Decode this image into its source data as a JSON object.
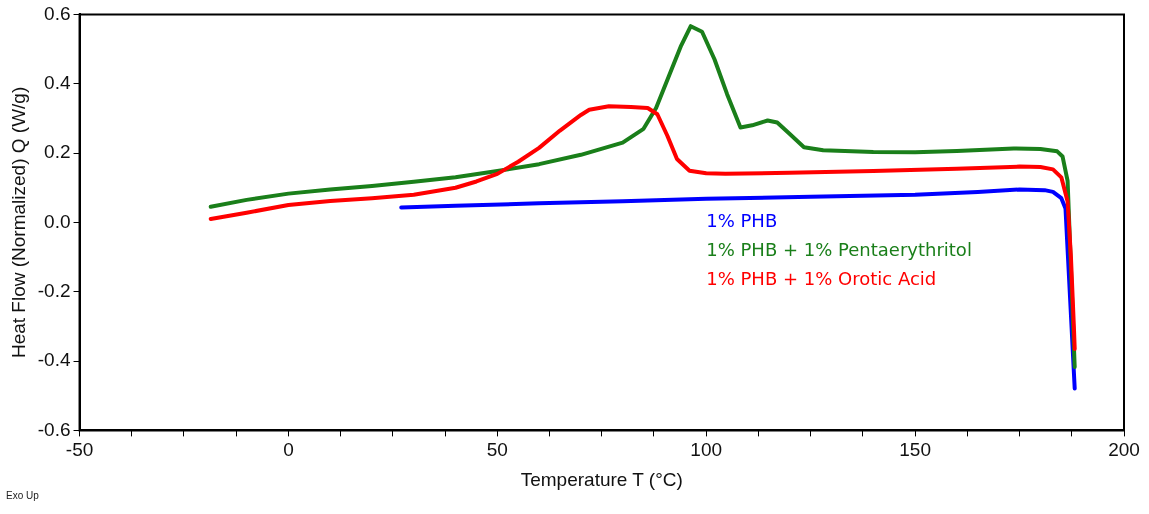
{
  "chart_data": {
    "type": "line",
    "xlabel": "Temperature T (°C)",
    "ylabel": "Heat Flow (Normalized) Q (W/g)",
    "xlim": [
      -50,
      200
    ],
    "xticks": [
      -50,
      {
        "value": -37.5,
        "label": null
      },
      {
        "value": -25,
        "label": null
      },
      {
        "value": -12.5,
        "label": null
      },
      0,
      {
        "value": 12.5,
        "label": null
      },
      {
        "value": 25,
        "label": null
      },
      {
        "value": 37.5,
        "label": null
      },
      50,
      {
        "value": 62.5,
        "label": null
      },
      {
        "value": 75,
        "label": null
      },
      {
        "value": 87.5,
        "label": null
      },
      100,
      {
        "value": 112.5,
        "label": null
      },
      {
        "value": 125,
        "label": null
      },
      {
        "value": 137.5,
        "label": null
      },
      150,
      {
        "value": 162.5,
        "label": null
      },
      {
        "value": 175,
        "label": null
      },
      {
        "value": 187.5,
        "label": null
      },
      200
    ],
    "ylim": [
      -0.6,
      0.6
    ],
    "yticks": [
      {
        "value": -0.6,
        "label": "-0.6"
      },
      {
        "value": -0.4,
        "label": "-0.4"
      },
      {
        "value": -0.2,
        "label": "-0.2"
      },
      {
        "value": 0,
        "label": "0.0"
      },
      {
        "value": 0.2,
        "label": "0.2"
      },
      {
        "value": 0.4,
        "label": "0.4"
      },
      {
        "value": 0.6,
        "label": "0.6"
      }
    ],
    "grid": false,
    "legend": "right",
    "marker": "none",
    "line_style": "solid",
    "annotations": [
      "Exo Up"
    ],
    "series": [
      {
        "name": "1% PHB",
        "color": "#0000ff",
        "x": [
          27,
          40,
          60,
          80,
          100,
          125,
          150,
          165,
          175,
          181,
          183,
          185,
          186,
          188.2
        ],
        "values": [
          0.043,
          0.048,
          0.055,
          0.061,
          0.068,
          0.074,
          0.08,
          0.088,
          0.095,
          0.093,
          0.088,
          0.07,
          0.04,
          -0.479
        ]
      },
      {
        "name": "1% PHB + 1% Pentaerythritol",
        "color": "#1a7f1a",
        "x": [
          -18.6,
          -10,
          0,
          10,
          20,
          30,
          40,
          50,
          60,
          70,
          80,
          85,
          88,
          91,
          94,
          96.3,
          99,
          102,
          105,
          108.2,
          111,
          114.7,
          117,
          120,
          123.4,
          128,
          140,
          150,
          160,
          173.6,
          180,
          184,
          185.3,
          186.5,
          188.2
        ],
        "values": [
          0.045,
          0.065,
          0.083,
          0.095,
          0.105,
          0.117,
          0.13,
          0.148,
          0.168,
          0.195,
          0.23,
          0.27,
          0.33,
          0.42,
          0.51,
          0.566,
          0.55,
          0.47,
          0.37,
          0.274,
          0.28,
          0.294,
          0.288,
          0.255,
          0.217,
          0.208,
          0.203,
          0.202,
          0.206,
          0.213,
          0.212,
          0.205,
          0.19,
          0.12,
          -0.417
        ]
      },
      {
        "name": "1% PHB + 1% Orotic Acid",
        "color": "#ff0000",
        "x": [
          -18.6,
          -10,
          0,
          10,
          20,
          30,
          40,
          45,
          50,
          55,
          60,
          65,
          70,
          72,
          76.7,
          82,
          86,
          88.3,
          90.7,
          93,
          96,
          100,
          104.6,
          120,
          140,
          160,
          175,
          180,
          183,
          185,
          186.5,
          187.3,
          188,
          188.2
        ],
        "values": [
          0.01,
          0.028,
          0.05,
          0.062,
          0.07,
          0.08,
          0.1,
          0.118,
          0.14,
          0.175,
          0.215,
          0.265,
          0.31,
          0.325,
          0.335,
          0.333,
          0.33,
          0.312,
          0.25,
          0.183,
          0.149,
          0.142,
          0.14,
          0.143,
          0.148,
          0.155,
          0.161,
          0.16,
          0.153,
          0.13,
          0.06,
          -0.1,
          -0.3,
          -0.365
        ]
      }
    ]
  }
}
